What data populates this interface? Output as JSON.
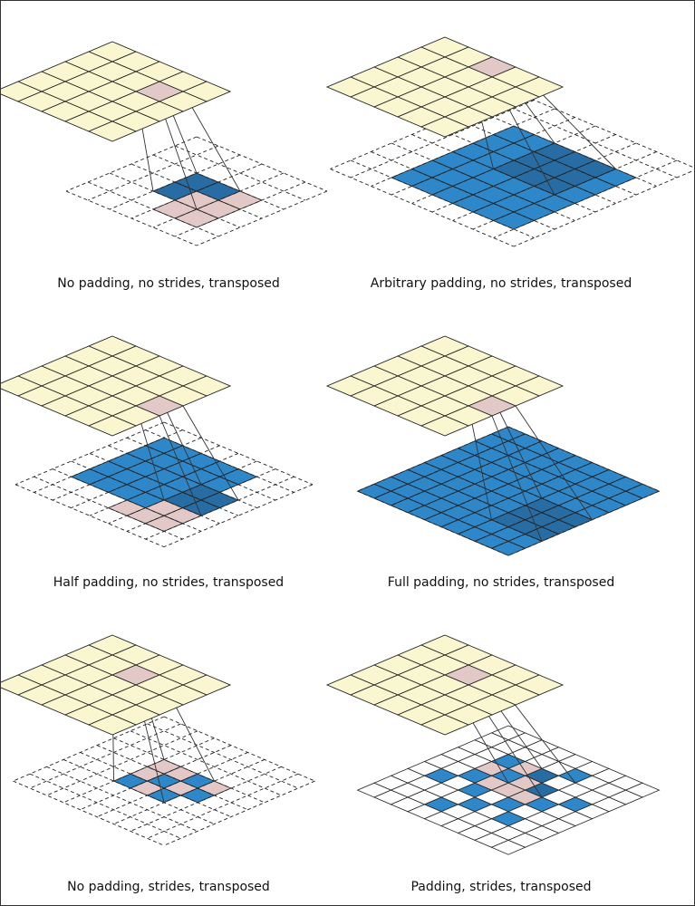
{
  "colors": {
    "output_cell": "#faf6cf",
    "highlight_cell": "#e2c8c6",
    "input_cell": "#2e87c9",
    "overlap_cell": "#276da3",
    "grid_line": "#222222",
    "padding_line": "#222222"
  },
  "panels": [
    {
      "caption": "No padding, no strides, transposed",
      "out_size": 5,
      "out_highlight": [
        [
          1,
          3
        ]
      ],
      "grid_size": 6,
      "input_cells": [
        [
          2,
          2
        ],
        [
          2,
          3
        ],
        [
          3,
          2
        ],
        [
          3,
          3
        ]
      ],
      "overlap_cells": [
        [
          2,
          2
        ],
        [
          2,
          3
        ],
        [
          3,
          2
        ]
      ],
      "highlight_cells": [
        [
          3,
          3
        ],
        [
          3,
          4
        ],
        [
          4,
          3
        ],
        [
          4,
          4
        ],
        [
          2,
          4
        ]
      ],
      "padding_dashed": true
    },
    {
      "caption": "Arbitrary padding, no strides, transposed",
      "out_size": 5,
      "out_highlight": [
        [
          0,
          2
        ]
      ],
      "grid_size": 9,
      "input_cells": "block:2:2:6",
      "overlap_cells": "block:2:4:3",
      "highlight_cells": [],
      "padding_dashed": true
    },
    {
      "caption": "Half padding, no strides, transposed",
      "out_size": 5,
      "out_highlight": [
        [
          2,
          4
        ]
      ],
      "grid_size": 8,
      "input_cells": "block:1:1:5",
      "overlap_cells": "block:3:5:2",
      "highlight_cells": [
        [
          4,
          6
        ],
        [
          5,
          6
        ],
        [
          6,
          4
        ],
        [
          6,
          5
        ],
        [
          6,
          6
        ],
        [
          5,
          5
        ]
      ],
      "padding_dashed": true
    },
    {
      "caption": "Full padding, no strides, transposed",
      "out_size": 5,
      "out_highlight": [
        [
          2,
          4
        ]
      ],
      "grid_size": 9,
      "input_cells": "block:0:0:9",
      "overlap_cells": "block:4:6:3",
      "highlight_cells": [],
      "padding_dashed": true
    },
    {
      "caption": "No padding, strides, transposed",
      "out_size": 5,
      "out_highlight": [
        [
          1,
          2
        ]
      ],
      "grid_size": 9,
      "input_cells": [
        [
          3,
          5
        ],
        [
          4,
          4
        ],
        [
          5,
          3
        ],
        [
          5,
          5
        ],
        [
          4,
          6
        ]
      ],
      "overlap_cells": [],
      "highlight_cells": [
        [
          3,
          3
        ],
        [
          3,
          4
        ],
        [
          4,
          3
        ],
        [
          4,
          5
        ],
        [
          5,
          4
        ],
        [
          3,
          6
        ]
      ],
      "padding_dashed": true
    },
    {
      "caption": "Padding, strides, transposed",
      "out_size": 5,
      "out_highlight": [
        [
          1,
          2
        ]
      ],
      "grid_size": 9,
      "input_cells": [
        [
          1,
          5
        ],
        [
          2,
          4
        ],
        [
          3,
          3
        ],
        [
          3,
          5
        ],
        [
          3,
          7
        ],
        [
          4,
          2
        ],
        [
          5,
          1
        ],
        [
          5,
          3
        ],
        [
          5,
          5
        ],
        [
          6,
          4
        ],
        [
          7,
          3
        ],
        [
          2,
          2
        ],
        [
          4,
          6
        ],
        [
          6,
          6
        ]
      ],
      "overlap_cells": [
        [
          2,
          4
        ],
        [
          3,
          5
        ]
      ],
      "highlight_cells": [
        [
          3,
          4
        ],
        [
          2,
          3
        ],
        [
          4,
          3
        ],
        [
          4,
          4
        ],
        [
          3,
          2
        ],
        [
          4,
          5
        ]
      ],
      "padding_dashed": false
    }
  ]
}
